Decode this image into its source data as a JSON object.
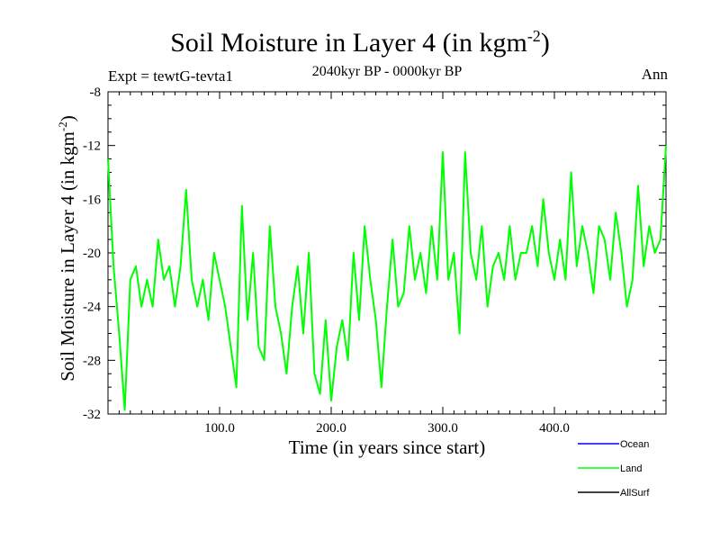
{
  "chart_data": {
    "type": "line",
    "title": "Soil Moisture in Layer 4 (in kgm",
    "title_sup": "-2",
    "title_close": ")",
    "experiment": "Expt = tewtG-tevta1",
    "period": "2040kyr BP - 0000kyr BP",
    "season": "Ann",
    "xlabel": "Time (in years since start)",
    "ylabel": "Soil Moisture in Layer 4 (in kgm",
    "ylabel_sup": "-2",
    "ylabel_close": ")",
    "xlim": [
      0,
      500
    ],
    "ylim": [
      -32,
      -8
    ],
    "xticks": [
      100,
      200,
      300,
      400
    ],
    "xtick_labels": [
      "100.0",
      "200.0",
      "300.0",
      "400.0"
    ],
    "yticks": [
      -32,
      -28,
      -24,
      -20,
      -16,
      -12,
      -8
    ],
    "ytick_labels": [
      "-32",
      "-28",
      "-24",
      "-20",
      "-16",
      "-12",
      "-8"
    ],
    "legend": [
      {
        "name": "Ocean",
        "color": "#0000ff"
      },
      {
        "name": "Land",
        "color": "#00ff00"
      },
      {
        "name": "AllSurf",
        "color": "#000000"
      }
    ],
    "series": [
      {
        "name": "Land",
        "color": "#00ff00",
        "x": [
          0,
          5,
          10,
          15,
          20,
          25,
          30,
          35,
          40,
          45,
          50,
          55,
          60,
          65,
          70,
          75,
          80,
          85,
          90,
          95,
          100,
          105,
          110,
          115,
          120,
          125,
          130,
          135,
          140,
          145,
          150,
          155,
          160,
          165,
          170,
          175,
          180,
          185,
          190,
          195,
          200,
          205,
          210,
          215,
          220,
          225,
          230,
          235,
          240,
          245,
          250,
          255,
          260,
          265,
          270,
          275,
          280,
          285,
          290,
          295,
          300,
          305,
          310,
          315,
          320,
          325,
          330,
          335,
          340,
          345,
          350,
          355,
          360,
          365,
          370,
          375,
          380,
          385,
          390,
          395,
          400,
          405,
          410,
          415,
          420,
          425,
          430,
          435,
          440,
          445,
          450,
          455,
          460,
          465,
          470,
          475,
          480,
          485,
          490,
          495,
          500
        ],
        "values": [
          -13,
          -21,
          -26,
          -31.7,
          -22,
          -21,
          -24,
          -22,
          -24,
          -19,
          -22,
          -21,
          -24,
          -21,
          -15.3,
          -22,
          -24,
          -22,
          -25,
          -20,
          -22,
          -24,
          -27,
          -30,
          -16.5,
          -25,
          -20,
          -27,
          -28,
          -18,
          -24,
          -26,
          -29,
          -24,
          -21,
          -26,
          -20,
          -29,
          -30.5,
          -25,
          -31,
          -27,
          -25,
          -28,
          -20,
          -25,
          -18,
          -22,
          -25,
          -30,
          -24,
          -19,
          -24,
          -23,
          -18,
          -22,
          -20,
          -23,
          -18,
          -22,
          -12.5,
          -22,
          -20,
          -26,
          -12.5,
          -20,
          -22,
          -18,
          -24,
          -21,
          -20,
          -22,
          -18,
          -22,
          -20,
          -20,
          -18,
          -21,
          -16,
          -20,
          -22,
          -19,
          -22,
          -14,
          -21,
          -18,
          -20,
          -23,
          -18,
          -19,
          -22,
          -17,
          -20,
          -24,
          -22,
          -15,
          -21,
          -18,
          -20,
          -19,
          -12
        ]
      }
    ]
  }
}
